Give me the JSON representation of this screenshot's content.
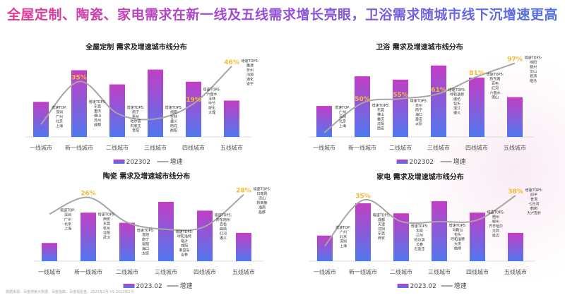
{
  "headline": "全屋定制、陶瓷、家电需求在新一线及五线需求增长亮眼，卫浴需求随城市线下沉增速更高",
  "source": "数据来源：百度搜索大数据、百度指数、百度观星盘，2023年2月 VS 2022年1月",
  "colors": {
    "bar_top": "#c23ec4",
    "bar_bottom": "#4f78ee",
    "line": "#a6a6a6",
    "growth_label": "#f5b830"
  },
  "chart_data": [
    {
      "type": "bar+line",
      "title": "全屋定制 需求及增速城市线分布",
      "categories": [
        "一线城市",
        "新一线城市",
        "二线城市",
        "三线城市",
        "四线城市",
        "五线城市"
      ],
      "legend": {
        "bar": "202302",
        "line": "增速",
        "placement": "bottom"
      },
      "bar_values_relative": [
        52,
        99,
        78,
        100,
        82,
        54
      ],
      "growth_percent_estimated": [
        4,
        35,
        12,
        8,
        19,
        46
      ],
      "growth_labels": [
        null,
        "35%",
        null,
        null,
        "19%",
        "46%"
      ],
      "line_ylim": [
        -5,
        50
      ],
      "annotations": [
        [
          "增速TOP:",
          "深圳",
          "广州",
          "北京",
          "上海"
        ],
        [
          "增速TOP5:",
          "东莞",
          "重庆",
          "佛山",
          "苏州",
          "成都"
        ],
        [
          "增速TOP5:",
          "南宁",
          "惠州",
          "哈尔滨",
          "石家庄",
          "贵阳"
        ],
        [
          "增速TOP5:",
          "揭阳",
          "吉林",
          "遵义",
          "南充",
          "衡阳"
        ],
        [
          "增速TOP5:",
          "六盘水",
          "玉林",
          "毕节",
          "绥化",
          "大理"
        ],
        [
          "增速TOP5:",
          "鹰潭",
          "忻州",
          "河源",
          "通化",
          "遂宁"
        ]
      ]
    },
    {
      "type": "bar+line",
      "title": "卫浴 需求及增速城市线分布",
      "categories": [
        "一线城市",
        "新一线城市",
        "二线城市",
        "三线城市",
        "四线城市",
        "五线城市"
      ],
      "legend": {
        "bar": "202302",
        "line": "增速",
        "placement": "bottom"
      },
      "bar_values_relative": [
        46,
        90,
        85,
        106,
        88,
        59
      ],
      "growth_percent_estimated": [
        15,
        50,
        55,
        61,
        81,
        97
      ],
      "growth_labels": [
        null,
        "50%",
        "55%",
        "61%",
        "81%",
        "97%"
      ],
      "line_ylim": [
        10,
        100
      ],
      "annotations": [
        [
          "增速TOP:",
          "广州",
          "深圳",
          "北京",
          "上海"
        ],
        [
          "增速TOP5:",
          "东莞",
          "佛山",
          "重庆",
          "沈阳",
          "西安"
        ],
        [
          "增速TOP5:",
          "泉州",
          "南宁",
          "海口",
          "泰安",
          "太原"
        ],
        [
          "增速TOP5:",
          "呼和浩特",
          "潍坊",
          "包头",
          "湛江",
          "遵义"
        ],
        [
          "增速TOP5:",
          "黔东南",
          "百色",
          "红河",
          "六盘水",
          "保山"
        ],
        [
          "增速TOP5:",
          "绵阳",
          "赣州",
          "文山",
          "普洱",
          "临沧"
        ]
      ]
    },
    {
      "type": "bar+line",
      "title": "陶瓷 需求及增速城市线分布",
      "categories": [
        "一线城市",
        "新一线城市",
        "二线城市",
        "三线城市",
        "四线城市",
        "五线城市"
      ],
      "legend": {
        "bar": "2023.02",
        "line": "增速",
        "placement": "bottom"
      },
      "bar_values_relative": [
        27,
        72,
        57,
        88,
        75,
        42
      ],
      "growth_percent_estimated": [
        14,
        26,
        8,
        3,
        5,
        28
      ],
      "growth_labels": [
        null,
        "26%",
        null,
        null,
        null,
        "28%"
      ],
      "line_ylim": [
        -20,
        35
      ],
      "annotations": [
        [
          "增速TOP:",
          "深圳",
          "广州",
          "北京",
          "上海"
        ],
        [
          "增速TOP5:",
          "西安",
          "东莞",
          "杭州",
          "沈阳",
          "武汉"
        ],
        [
          "增速TOP5:",
          "贵阳",
          "南宁",
          "昆明",
          "海口",
          "太原"
        ],
        [
          "增速TOP5:",
          "呼和浩特",
          "临沂",
          "咸阳",
          "秦皇岛",
          "吉林"
        ],
        [
          "增速TOP5:",
          "黔东南州",
          "百色",
          "曲靖",
          "红河",
          "遵义"
        ],
        [
          "增速TOP5:",
          "日喀则",
          "凉山",
          "黔西南",
          "海南",
          "昌都"
        ]
      ]
    },
    {
      "type": "bar+line",
      "title": "家电 需求及增速城市线分布",
      "categories": [
        "一线城市",
        "新一线城市",
        "二线城市",
        "三线城市",
        "四线城市",
        "五线城市"
      ],
      "legend": {
        "bar": "2023.02",
        "line": "增速",
        "placement": "bottom"
      },
      "bar_values_relative": [
        38,
        86,
        71,
        89,
        72,
        42
      ],
      "growth_percent_estimated": [
        5,
        35,
        21,
        21,
        22,
        38
      ],
      "growth_labels": [
        null,
        "35%",
        null,
        null,
        null,
        "38%"
      ],
      "line_ylim": [
        -5,
        45
      ],
      "annotations": [
        [
          "增速TOP:",
          "广州",
          "北京",
          "深圳",
          "上海"
        ],
        [
          "增速TOP5:",
          "成都",
          "天津",
          "沈阳",
          "东莞",
          "西安"
        ],
        [
          "增速TOP5:",
          "太原",
          "兰州",
          "哈尔滨",
          "长春",
          "石家庄"
        ],
        [
          "增速TOP5:",
          "马鞍山",
          "包头",
          "呼和浩特",
          "大庆",
          "曲靖"
        ],
        [
          "增速TOP5:",
          "梧州",
          "柳州",
          "齐齐哈尔",
          "大同",
          "延边"
        ],
        [
          "增速TOP5:",
          "四平",
          "普洱",
          "七台河",
          "鹤岗",
          "大兴安岭"
        ]
      ]
    }
  ]
}
